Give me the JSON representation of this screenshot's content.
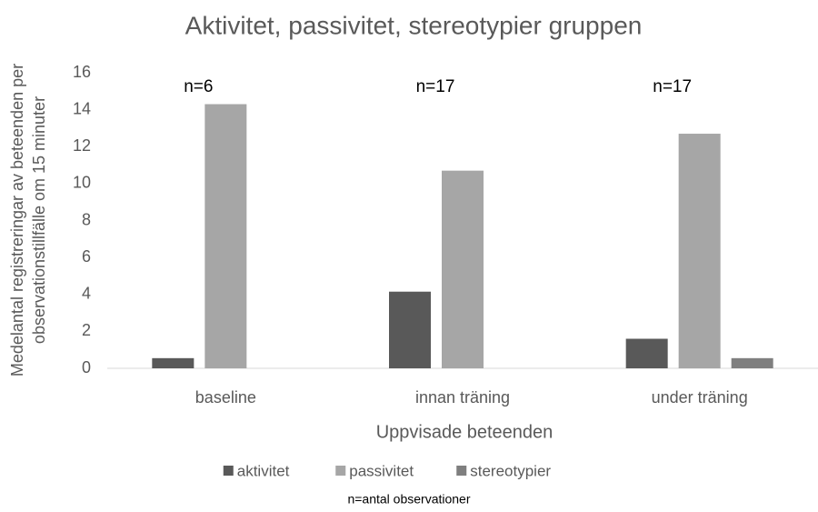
{
  "chart_data": {
    "type": "bar",
    "title": "Aktivitet, passivitet, stereotypier gruppen",
    "xlabel": "Uppvisade beteenden",
    "ylabel": [
      "Medelantal registreringar av beteenden per",
      "observationstillfälle om 15 minuter"
    ],
    "categories": [
      "baseline",
      "innan träning",
      "under träning"
    ],
    "series": [
      {
        "name": "aktivitet",
        "color": "#595959",
        "values": [
          0.55,
          4.15,
          1.6
        ]
      },
      {
        "name": "passivitet",
        "color": "#a6a6a6",
        "values": [
          14.3,
          10.7,
          12.7
        ]
      },
      {
        "name": "stereotypier",
        "color": "#7f7f7f",
        "values": [
          0,
          0,
          0.55
        ]
      }
    ],
    "annotations": [
      "n=6",
      "n=17",
      "n=17"
    ],
    "note": "n=antal observationer",
    "ylim": [
      0,
      16
    ],
    "yticks": [
      0,
      2,
      4,
      6,
      8,
      10,
      12,
      14,
      16
    ],
    "grid": false,
    "legend": "bottom"
  }
}
